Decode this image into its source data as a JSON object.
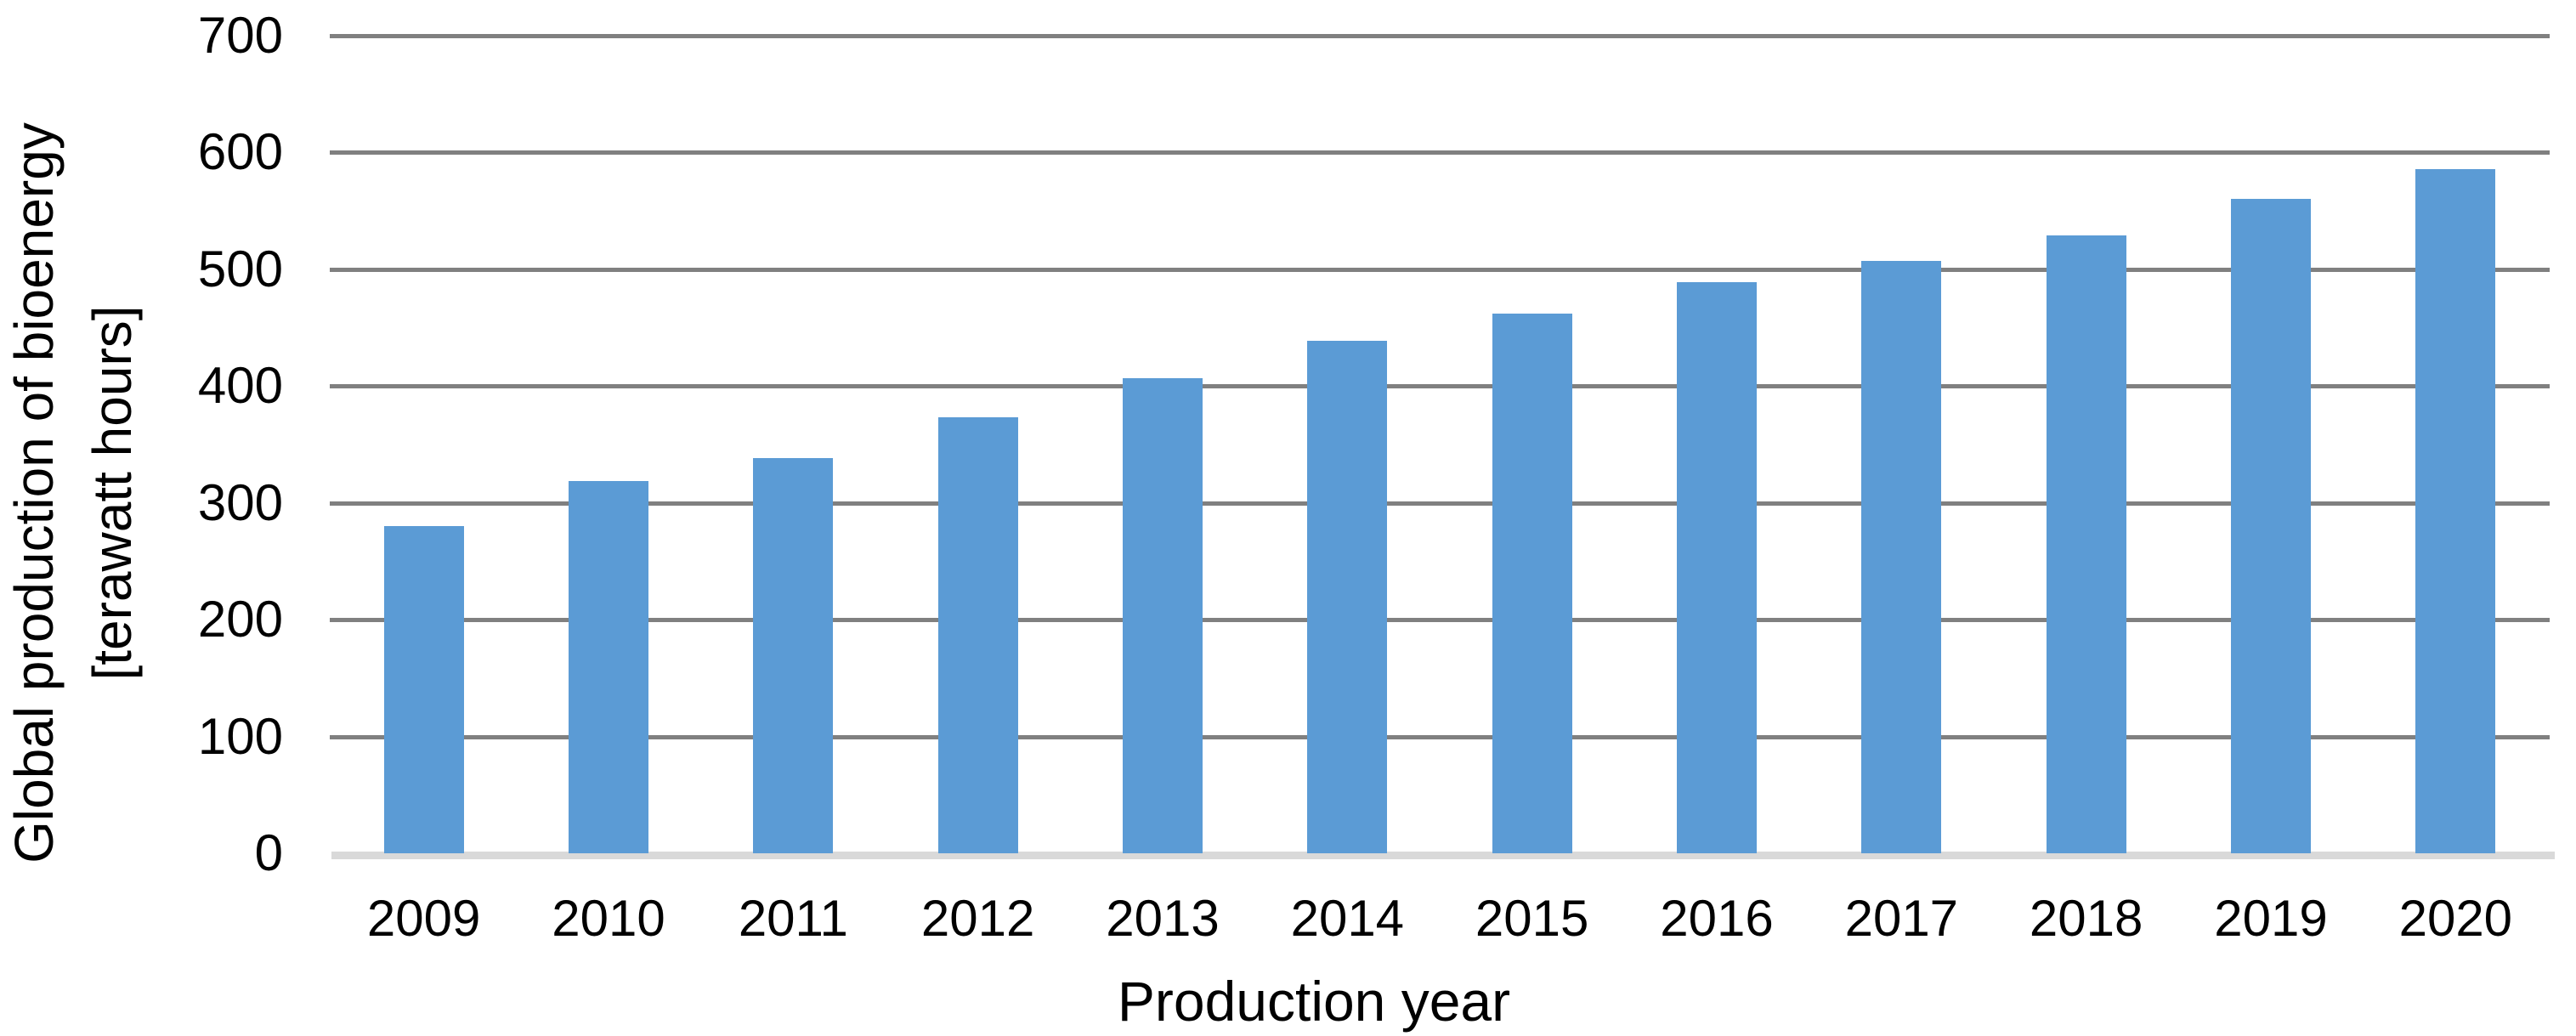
{
  "chart_data": {
    "type": "bar",
    "title": "",
    "xlabel": "Production year",
    "ylabel_lines": [
      "Global production of bioenergy",
      "[terawatt hours]"
    ],
    "categories": [
      "2009",
      "2010",
      "2011",
      "2012",
      "2013",
      "2014",
      "2015",
      "2016",
      "2017",
      "2018",
      "2019",
      "2020"
    ],
    "values": [
      280,
      319,
      338,
      373,
      407,
      439,
      462,
      489,
      507,
      529,
      560,
      586
    ],
    "ylim": [
      0,
      700
    ],
    "ytick_step": 100,
    "ytick_labels": [
      "0",
      "100",
      "200",
      "300",
      "400",
      "500",
      "600",
      "700"
    ],
    "grid": "horizontal",
    "legend": "none",
    "colors": {
      "bar": "#5B9BD5",
      "gridline": "#808080",
      "axis_line": "#D9D9D9",
      "text": "#000000",
      "background": "#FFFFFF"
    }
  }
}
